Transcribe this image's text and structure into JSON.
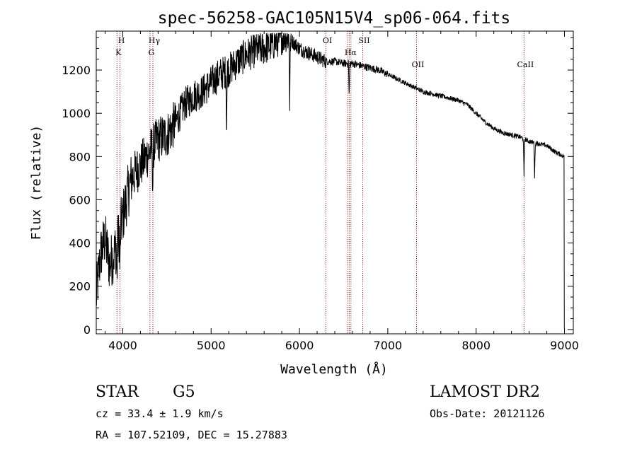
{
  "chart_data": {
    "type": "line",
    "title": "spec-56258-GAC105N15V4_sp06-064.fits",
    "xlabel": "Wavelength (Å)",
    "ylabel": "Flux (relative)",
    "xlim": [
      3700,
      9100
    ],
    "ylim": [
      -20,
      1380
    ],
    "x_ticks": [
      4000,
      5000,
      6000,
      7000,
      8000,
      9000
    ],
    "x_tick_labels": [
      "4000",
      "5000",
      "6000",
      "7000",
      "8000",
      "9000"
    ],
    "y_ticks": [
      0,
      200,
      400,
      600,
      800,
      1000,
      1200
    ],
    "y_tick_labels": [
      "0",
      "200",
      "400",
      "600",
      "800",
      "1000",
      "1200"
    ],
    "spectrum_envelope": {
      "x": [
        3700,
        3750,
        3800,
        3850,
        3900,
        3950,
        4000,
        4050,
        4100,
        4200,
        4300,
        4400,
        4500,
        4600,
        4700,
        4800,
        4900,
        5000,
        5100,
        5200,
        5300,
        5400,
        5500,
        5600,
        5700,
        5800,
        5850,
        5900,
        6000,
        6100,
        6200,
        6300,
        6400,
        6500,
        6600,
        6700,
        6800,
        6900,
        7000,
        7100,
        7200,
        7300,
        7400,
        7500,
        7600,
        7700,
        7800,
        7900,
        8000,
        8100,
        8200,
        8300,
        8400,
        8500,
        8600,
        8700,
        8800,
        8900,
        9000
      ],
      "y": [
        150,
        350,
        420,
        300,
        350,
        420,
        520,
        620,
        700,
        760,
        820,
        880,
        900,
        960,
        1040,
        1080,
        1100,
        1140,
        1180,
        1200,
        1240,
        1270,
        1290,
        1300,
        1320,
        1350,
        1360,
        1340,
        1300,
        1280,
        1260,
        1240,
        1240,
        1230,
        1230,
        1220,
        1210,
        1200,
        1180,
        1160,
        1140,
        1120,
        1100,
        1090,
        1080,
        1070,
        1060,
        1040,
        1000,
        960,
        930,
        910,
        900,
        890,
        870,
        860,
        850,
        820,
        800
      ]
    },
    "absorption_features": [
      {
        "x": 3934,
        "depth": 180
      },
      {
        "x": 3969,
        "depth": 200
      },
      {
        "x": 4340,
        "depth": 200
      },
      {
        "x": 5175,
        "depth": 280
      },
      {
        "x": 5890,
        "depth": 300
      },
      {
        "x": 6563,
        "depth": 160
      },
      {
        "x": 8542,
        "depth": 180
      },
      {
        "x": 8662,
        "depth": 160
      }
    ],
    "reference_lines": [
      {
        "x": 3934,
        "label": "K",
        "row": 2
      },
      {
        "x": 3969,
        "label": "H",
        "row": 1
      },
      {
        "x": 4308,
        "label": "G",
        "row": 2
      },
      {
        "x": 4341,
        "label": "Hγ",
        "row": 1
      },
      {
        "x": 6300,
        "label": "OI",
        "row": 1
      },
      {
        "x": 6548,
        "label": "",
        "row": 0
      },
      {
        "x": 6563,
        "label": "Hα",
        "row": 2
      },
      {
        "x": 6583,
        "label": "",
        "row": 0
      },
      {
        "x": 6716,
        "label": "SII",
        "row": 1
      },
      {
        "x": 7325,
        "label": "OII",
        "row": 3
      },
      {
        "x": 8542,
        "label": "CaII",
        "row": 3
      }
    ]
  },
  "info": {
    "class_label": "STAR",
    "subclass": "G5",
    "survey": "LAMOST DR2",
    "redshift": "cz = 33.4 ± 1.9 km/s",
    "obs_date": "Obs-Date: 20121126",
    "coords": "RA = 107.52109, DEC =  15.27883"
  },
  "colors": {
    "spectrum": "#000000",
    "reference_line": "#8b1a1a"
  }
}
